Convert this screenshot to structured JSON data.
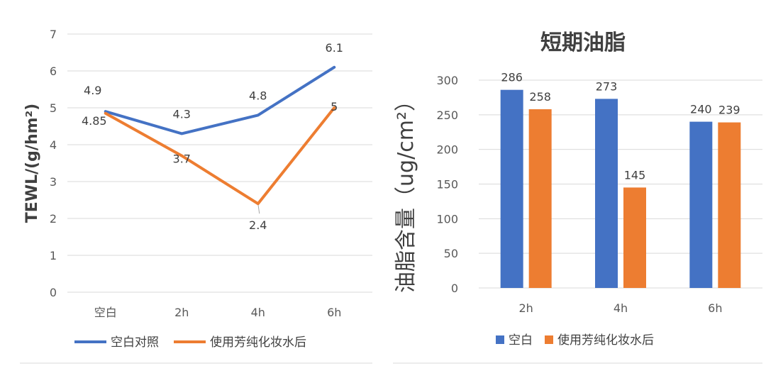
{
  "colors": {
    "blue": "#4472c4",
    "orange": "#ed7d31",
    "grid": "#d9d9d9",
    "text": "#404040"
  },
  "chart_data": [
    {
      "type": "line",
      "title": "",
      "xlabel": "",
      "ylabel": "TEWL/(g/hm²)",
      "ylim": [
        0,
        7
      ],
      "yticks": [
        "0",
        "1",
        "2",
        "3",
        "4",
        "5",
        "6",
        "7"
      ],
      "categories": [
        "空白",
        "2h",
        "4h",
        "6h"
      ],
      "grid": true,
      "legend_position": "bottom",
      "series": [
        {
          "name": "空白对照",
          "color": "#4472c4",
          "values": [
            4.9,
            4.3,
            4.8,
            6.1
          ],
          "labels": [
            "4.9",
            "4.3",
            "4.8",
            "6.1"
          ]
        },
        {
          "name": "使用芳纯化妆水后",
          "color": "#ed7d31",
          "values": [
            4.85,
            3.7,
            2.4,
            5
          ],
          "labels": [
            "4.85",
            "3.7",
            "2.4",
            "5"
          ]
        }
      ]
    },
    {
      "type": "bar",
      "title": "短期油脂",
      "xlabel": "",
      "ylabel": "油脂含量（ug/cm²）",
      "ylim": [
        0,
        300
      ],
      "yticks": [
        "0",
        "50",
        "100",
        "150",
        "200",
        "250",
        "300"
      ],
      "categories": [
        "2h",
        "4h",
        "6h"
      ],
      "grid": true,
      "legend_position": "bottom",
      "series": [
        {
          "name": "空白",
          "color": "#4472c4",
          "values": [
            286,
            273,
            240
          ],
          "labels": [
            "286",
            "273",
            "240"
          ]
        },
        {
          "name": "使用芳纯化妆水后",
          "color": "#ed7d31",
          "values": [
            258,
            145,
            239
          ],
          "labels": [
            "258",
            "145",
            "239"
          ]
        }
      ]
    }
  ]
}
